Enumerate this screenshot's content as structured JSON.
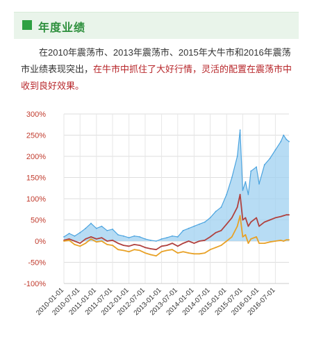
{
  "header": {
    "title": "年度业绩",
    "accent": "#2ea042"
  },
  "paragraph": {
    "normal": "在2010年震荡市、2013年震荡市、2015年大牛市和2016年震荡市业绩表现突出，",
    "highlight": "在牛市中抓住了大好行情，灵活的配置在震荡市中收到良好效果。",
    "highlight_color": "#b7262a"
  },
  "chart_data": {
    "type": "line",
    "y_tick_labels": [
      "300%",
      "250%",
      "200%",
      "150%",
      "100%",
      "50%",
      "0%",
      "-50%",
      "-100%"
    ],
    "x_tick_labels": [
      "2010-01-01",
      "2010-07-01",
      "2011-01-01",
      "2011-07-01",
      "2012-01-01",
      "2012-07-01",
      "2013-01-01",
      "2013-07-01",
      "2014-01-01",
      "2014-07-01",
      "2015-01-01",
      "2015-07-01",
      "2016-01-01",
      "2016-07-01"
    ],
    "ylim": [
      -100,
      300
    ],
    "xlim": [
      "2010-01-01",
      "2016-12-01"
    ],
    "grid": true,
    "series": [
      {
        "color": "#4aa3df",
        "fill": "#9fd0f0",
        "points": [
          [
            "2010-01-01",
            10
          ],
          [
            "2010-03-01",
            18
          ],
          [
            "2010-05-01",
            12
          ],
          [
            "2010-07-01",
            20
          ],
          [
            "2010-09-01",
            30
          ],
          [
            "2010-11-01",
            42
          ],
          [
            "2011-01-01",
            30
          ],
          [
            "2011-03-01",
            35
          ],
          [
            "2011-05-01",
            25
          ],
          [
            "2011-07-01",
            28
          ],
          [
            "2011-09-01",
            15
          ],
          [
            "2011-11-01",
            12
          ],
          [
            "2012-01-01",
            8
          ],
          [
            "2012-03-01",
            12
          ],
          [
            "2012-05-01",
            10
          ],
          [
            "2012-07-01",
            5
          ],
          [
            "2012-09-01",
            2
          ],
          [
            "2012-11-01",
            0
          ],
          [
            "2013-01-01",
            5
          ],
          [
            "2013-03-01",
            8
          ],
          [
            "2013-05-01",
            12
          ],
          [
            "2013-07-01",
            10
          ],
          [
            "2013-09-01",
            25
          ],
          [
            "2013-11-01",
            30
          ],
          [
            "2014-01-01",
            35
          ],
          [
            "2014-03-01",
            40
          ],
          [
            "2014-05-01",
            45
          ],
          [
            "2014-07-01",
            55
          ],
          [
            "2014-09-01",
            70
          ],
          [
            "2014-11-01",
            80
          ],
          [
            "2015-01-01",
            110
          ],
          [
            "2015-03-01",
            150
          ],
          [
            "2015-05-01",
            200
          ],
          [
            "2015-06-01",
            262
          ],
          [
            "2015-07-01",
            120
          ],
          [
            "2015-08-01",
            140
          ],
          [
            "2015-09-01",
            110
          ],
          [
            "2015-10-01",
            165
          ],
          [
            "2015-12-01",
            175
          ],
          [
            "2016-01-01",
            135
          ],
          [
            "2016-03-01",
            180
          ],
          [
            "2016-05-01",
            195
          ],
          [
            "2016-07-01",
            215
          ],
          [
            "2016-09-01",
            235
          ],
          [
            "2016-10-01",
            250
          ],
          [
            "2016-11-01",
            240
          ],
          [
            "2016-12-01",
            235
          ]
        ]
      },
      {
        "color": "#b0413e",
        "points": [
          [
            "2010-01-01",
            2
          ],
          [
            "2010-03-01",
            5
          ],
          [
            "2010-05-01",
            0
          ],
          [
            "2010-07-01",
            -5
          ],
          [
            "2010-09-01",
            5
          ],
          [
            "2010-11-01",
            10
          ],
          [
            "2011-01-01",
            5
          ],
          [
            "2011-03-01",
            8
          ],
          [
            "2011-05-01",
            0
          ],
          [
            "2011-07-01",
            2
          ],
          [
            "2011-09-01",
            -5
          ],
          [
            "2011-11-01",
            -10
          ],
          [
            "2012-01-01",
            -12
          ],
          [
            "2012-03-01",
            -8
          ],
          [
            "2012-05-01",
            -10
          ],
          [
            "2012-07-01",
            -15
          ],
          [
            "2012-09-01",
            -18
          ],
          [
            "2012-11-01",
            -20
          ],
          [
            "2013-01-01",
            -12
          ],
          [
            "2013-03-01",
            -10
          ],
          [
            "2013-05-01",
            -5
          ],
          [
            "2013-07-01",
            -12
          ],
          [
            "2013-09-01",
            -5
          ],
          [
            "2013-11-01",
            0
          ],
          [
            "2014-01-01",
            -5
          ],
          [
            "2014-03-01",
            0
          ],
          [
            "2014-05-01",
            2
          ],
          [
            "2014-07-01",
            10
          ],
          [
            "2014-09-01",
            20
          ],
          [
            "2014-11-01",
            25
          ],
          [
            "2015-01-01",
            40
          ],
          [
            "2015-03-01",
            55
          ],
          [
            "2015-05-01",
            80
          ],
          [
            "2015-06-01",
            110
          ],
          [
            "2015-07-01",
            50
          ],
          [
            "2015-08-01",
            55
          ],
          [
            "2015-09-01",
            35
          ],
          [
            "2015-10-01",
            45
          ],
          [
            "2015-12-01",
            55
          ],
          [
            "2016-01-01",
            35
          ],
          [
            "2016-03-01",
            45
          ],
          [
            "2016-05-01",
            50
          ],
          [
            "2016-07-01",
            55
          ],
          [
            "2016-09-01",
            58
          ],
          [
            "2016-10-01",
            60
          ],
          [
            "2016-11-01",
            62
          ],
          [
            "2016-12-01",
            62
          ]
        ]
      },
      {
        "color": "#e8a126",
        "points": [
          [
            "2010-01-01",
            0
          ],
          [
            "2010-03-01",
            2
          ],
          [
            "2010-05-01",
            -8
          ],
          [
            "2010-07-01",
            -12
          ],
          [
            "2010-09-01",
            -5
          ],
          [
            "2010-11-01",
            5
          ],
          [
            "2011-01-01",
            -2
          ],
          [
            "2011-03-01",
            0
          ],
          [
            "2011-05-01",
            -8
          ],
          [
            "2011-07-01",
            -10
          ],
          [
            "2011-09-01",
            -20
          ],
          [
            "2011-11-01",
            -22
          ],
          [
            "2012-01-01",
            -25
          ],
          [
            "2012-03-01",
            -20
          ],
          [
            "2012-05-01",
            -22
          ],
          [
            "2012-07-01",
            -28
          ],
          [
            "2012-09-01",
            -32
          ],
          [
            "2012-11-01",
            -35
          ],
          [
            "2013-01-01",
            -25
          ],
          [
            "2013-03-01",
            -22
          ],
          [
            "2013-05-01",
            -20
          ],
          [
            "2013-07-01",
            -28
          ],
          [
            "2013-09-01",
            -25
          ],
          [
            "2013-11-01",
            -28
          ],
          [
            "2014-01-01",
            -30
          ],
          [
            "2014-03-01",
            -30
          ],
          [
            "2014-05-01",
            -28
          ],
          [
            "2014-07-01",
            -20
          ],
          [
            "2014-09-01",
            -15
          ],
          [
            "2014-11-01",
            -10
          ],
          [
            "2015-01-01",
            0
          ],
          [
            "2015-03-01",
            10
          ],
          [
            "2015-05-01",
            35
          ],
          [
            "2015-06-01",
            60
          ],
          [
            "2015-07-01",
            10
          ],
          [
            "2015-08-01",
            15
          ],
          [
            "2015-09-01",
            -5
          ],
          [
            "2015-10-01",
            5
          ],
          [
            "2015-12-01",
            10
          ],
          [
            "2016-01-01",
            -5
          ],
          [
            "2016-03-01",
            -5
          ],
          [
            "2016-05-01",
            -2
          ],
          [
            "2016-07-01",
            0
          ],
          [
            "2016-09-01",
            2
          ],
          [
            "2016-10-01",
            0
          ],
          [
            "2016-11-01",
            3
          ],
          [
            "2016-12-01",
            3
          ]
        ]
      }
    ]
  }
}
